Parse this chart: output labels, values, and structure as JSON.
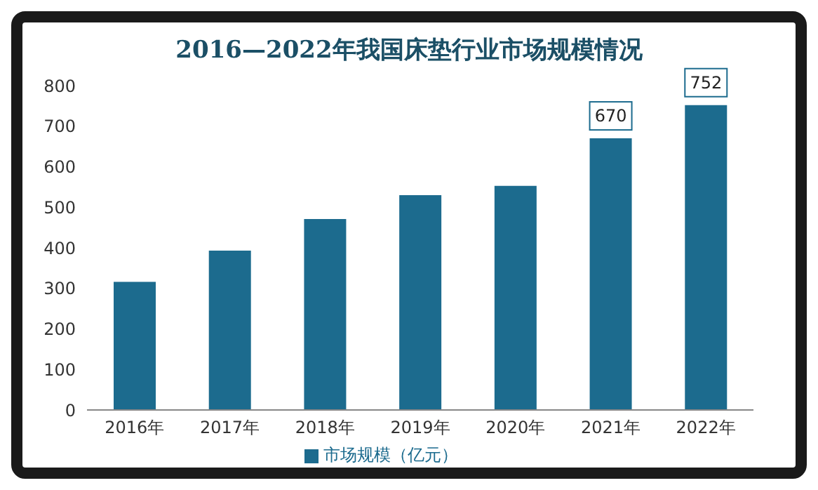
{
  "chart_data": {
    "type": "bar",
    "title": "2016—2022年我国床垫行业市场规模情况",
    "categories": [
      "2016年",
      "2017年",
      "2018年",
      "2019年",
      "2020年",
      "2021年",
      "2022年"
    ],
    "series": [
      {
        "name": "市场规模（亿元）",
        "color": "#1c6b8e",
        "values": [
          316,
          393,
          471,
          530,
          553,
          670,
          752
        ],
        "value_labels": [
          null,
          null,
          null,
          null,
          null,
          "670",
          "752"
        ]
      }
    ],
    "ylim": [
      0,
      800
    ],
    "yticks": [
      0,
      100,
      200,
      300,
      400,
      500,
      600,
      700,
      800
    ],
    "grid": false,
    "legend": "bottom"
  }
}
